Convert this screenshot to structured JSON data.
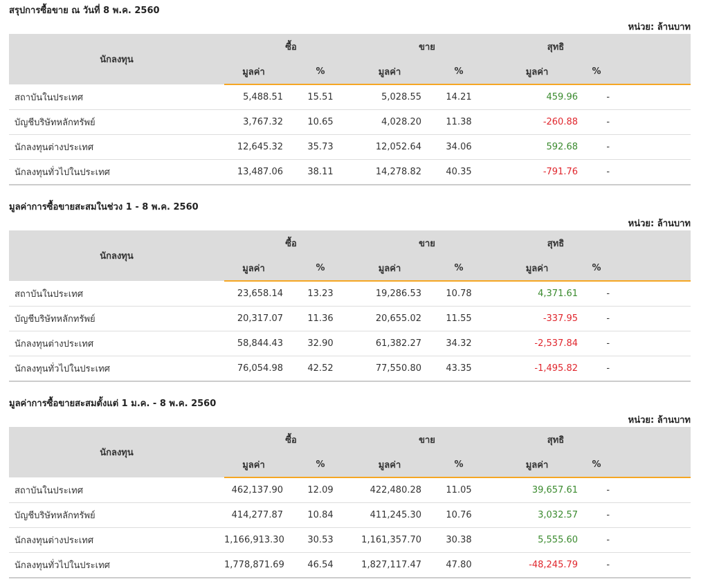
{
  "colors": {
    "header_bg": "#dcdcdc",
    "accent": "#f5a623",
    "positive": "#3a8a2e",
    "negative": "#e0262d"
  },
  "sections": [
    {
      "title": "สรุปการซื้อขาย ณ วันที่ 8 พ.ค. 2560",
      "unit": "หน่วย: ล้านบาท",
      "headers": {
        "investor": "นักลงทุน",
        "buy": "ซื้อ",
        "sell": "ขาย",
        "net": "สุทธิ",
        "value": "มูลค่า",
        "pct": "%"
      },
      "rows": [
        {
          "name": "สถาบันในประเทศ",
          "buy_value": "5,488.51",
          "buy_pct": "15.51",
          "sell_value": "5,028.55",
          "sell_pct": "14.21",
          "net_value": "459.96",
          "net_pct": "-",
          "net_sign": "pos"
        },
        {
          "name": "บัญชีบริษัทหลักทรัพย์",
          "buy_value": "3,767.32",
          "buy_pct": "10.65",
          "sell_value": "4,028.20",
          "sell_pct": "11.38",
          "net_value": "-260.88",
          "net_pct": "-",
          "net_sign": "neg"
        },
        {
          "name": "นักลงทุนต่างประเทศ",
          "buy_value": "12,645.32",
          "buy_pct": "35.73",
          "sell_value": "12,052.64",
          "sell_pct": "34.06",
          "net_value": "592.68",
          "net_pct": "-",
          "net_sign": "pos"
        },
        {
          "name": "นักลงทุนทั่วไปในประเทศ",
          "buy_value": "13,487.06",
          "buy_pct": "38.11",
          "sell_value": "14,278.82",
          "sell_pct": "40.35",
          "net_value": "-791.76",
          "net_pct": "-",
          "net_sign": "neg"
        }
      ]
    },
    {
      "title": "มูลค่าการซื้อขายสะสมในช่วง 1 - 8 พ.ค. 2560",
      "unit": "หน่วย: ล้านบาท",
      "headers": {
        "investor": "นักลงทุน",
        "buy": "ซื้อ",
        "sell": "ขาย",
        "net": "สุทธิ",
        "value": "มูลค่า",
        "pct": "%"
      },
      "rows": [
        {
          "name": "สถาบันในประเทศ",
          "buy_value": "23,658.14",
          "buy_pct": "13.23",
          "sell_value": "19,286.53",
          "sell_pct": "10.78",
          "net_value": "4,371.61",
          "net_pct": "-",
          "net_sign": "pos"
        },
        {
          "name": "บัญชีบริษัทหลักทรัพย์",
          "buy_value": "20,317.07",
          "buy_pct": "11.36",
          "sell_value": "20,655.02",
          "sell_pct": "11.55",
          "net_value": "-337.95",
          "net_pct": "-",
          "net_sign": "neg"
        },
        {
          "name": "นักลงทุนต่างประเทศ",
          "buy_value": "58,844.43",
          "buy_pct": "32.90",
          "sell_value": "61,382.27",
          "sell_pct": "34.32",
          "net_value": "-2,537.84",
          "net_pct": "-",
          "net_sign": "neg"
        },
        {
          "name": "นักลงทุนทั่วไปในประเทศ",
          "buy_value": "76,054.98",
          "buy_pct": "42.52",
          "sell_value": "77,550.80",
          "sell_pct": "43.35",
          "net_value": "-1,495.82",
          "net_pct": "-",
          "net_sign": "neg"
        }
      ]
    },
    {
      "title": "มูลค่าการซื้อขายสะสมตั้งแต่ 1 ม.ค. - 8 พ.ค. 2560",
      "unit": "หน่วย: ล้านบาท",
      "headers": {
        "investor": "นักลงทุน",
        "buy": "ซื้อ",
        "sell": "ขาย",
        "net": "สุทธิ",
        "value": "มูลค่า",
        "pct": "%"
      },
      "rows": [
        {
          "name": "สถาบันในประเทศ",
          "buy_value": "462,137.90",
          "buy_pct": "12.09",
          "sell_value": "422,480.28",
          "sell_pct": "11.05",
          "net_value": "39,657.61",
          "net_pct": "-",
          "net_sign": "pos"
        },
        {
          "name": "บัญชีบริษัทหลักทรัพย์",
          "buy_value": "414,277.87",
          "buy_pct": "10.84",
          "sell_value": "411,245.30",
          "sell_pct": "10.76",
          "net_value": "3,032.57",
          "net_pct": "-",
          "net_sign": "pos"
        },
        {
          "name": "นักลงทุนต่างประเทศ",
          "buy_value": "1,166,913.30",
          "buy_pct": "30.53",
          "sell_value": "1,161,357.70",
          "sell_pct": "30.38",
          "net_value": "5,555.60",
          "net_pct": "-",
          "net_sign": "pos"
        },
        {
          "name": "นักลงทุนทั่วไปในประเทศ",
          "buy_value": "1,778,871.69",
          "buy_pct": "46.54",
          "sell_value": "1,827,117.47",
          "sell_pct": "47.80",
          "net_value": "-48,245.79",
          "net_pct": "-",
          "net_sign": "neg"
        }
      ]
    }
  ]
}
